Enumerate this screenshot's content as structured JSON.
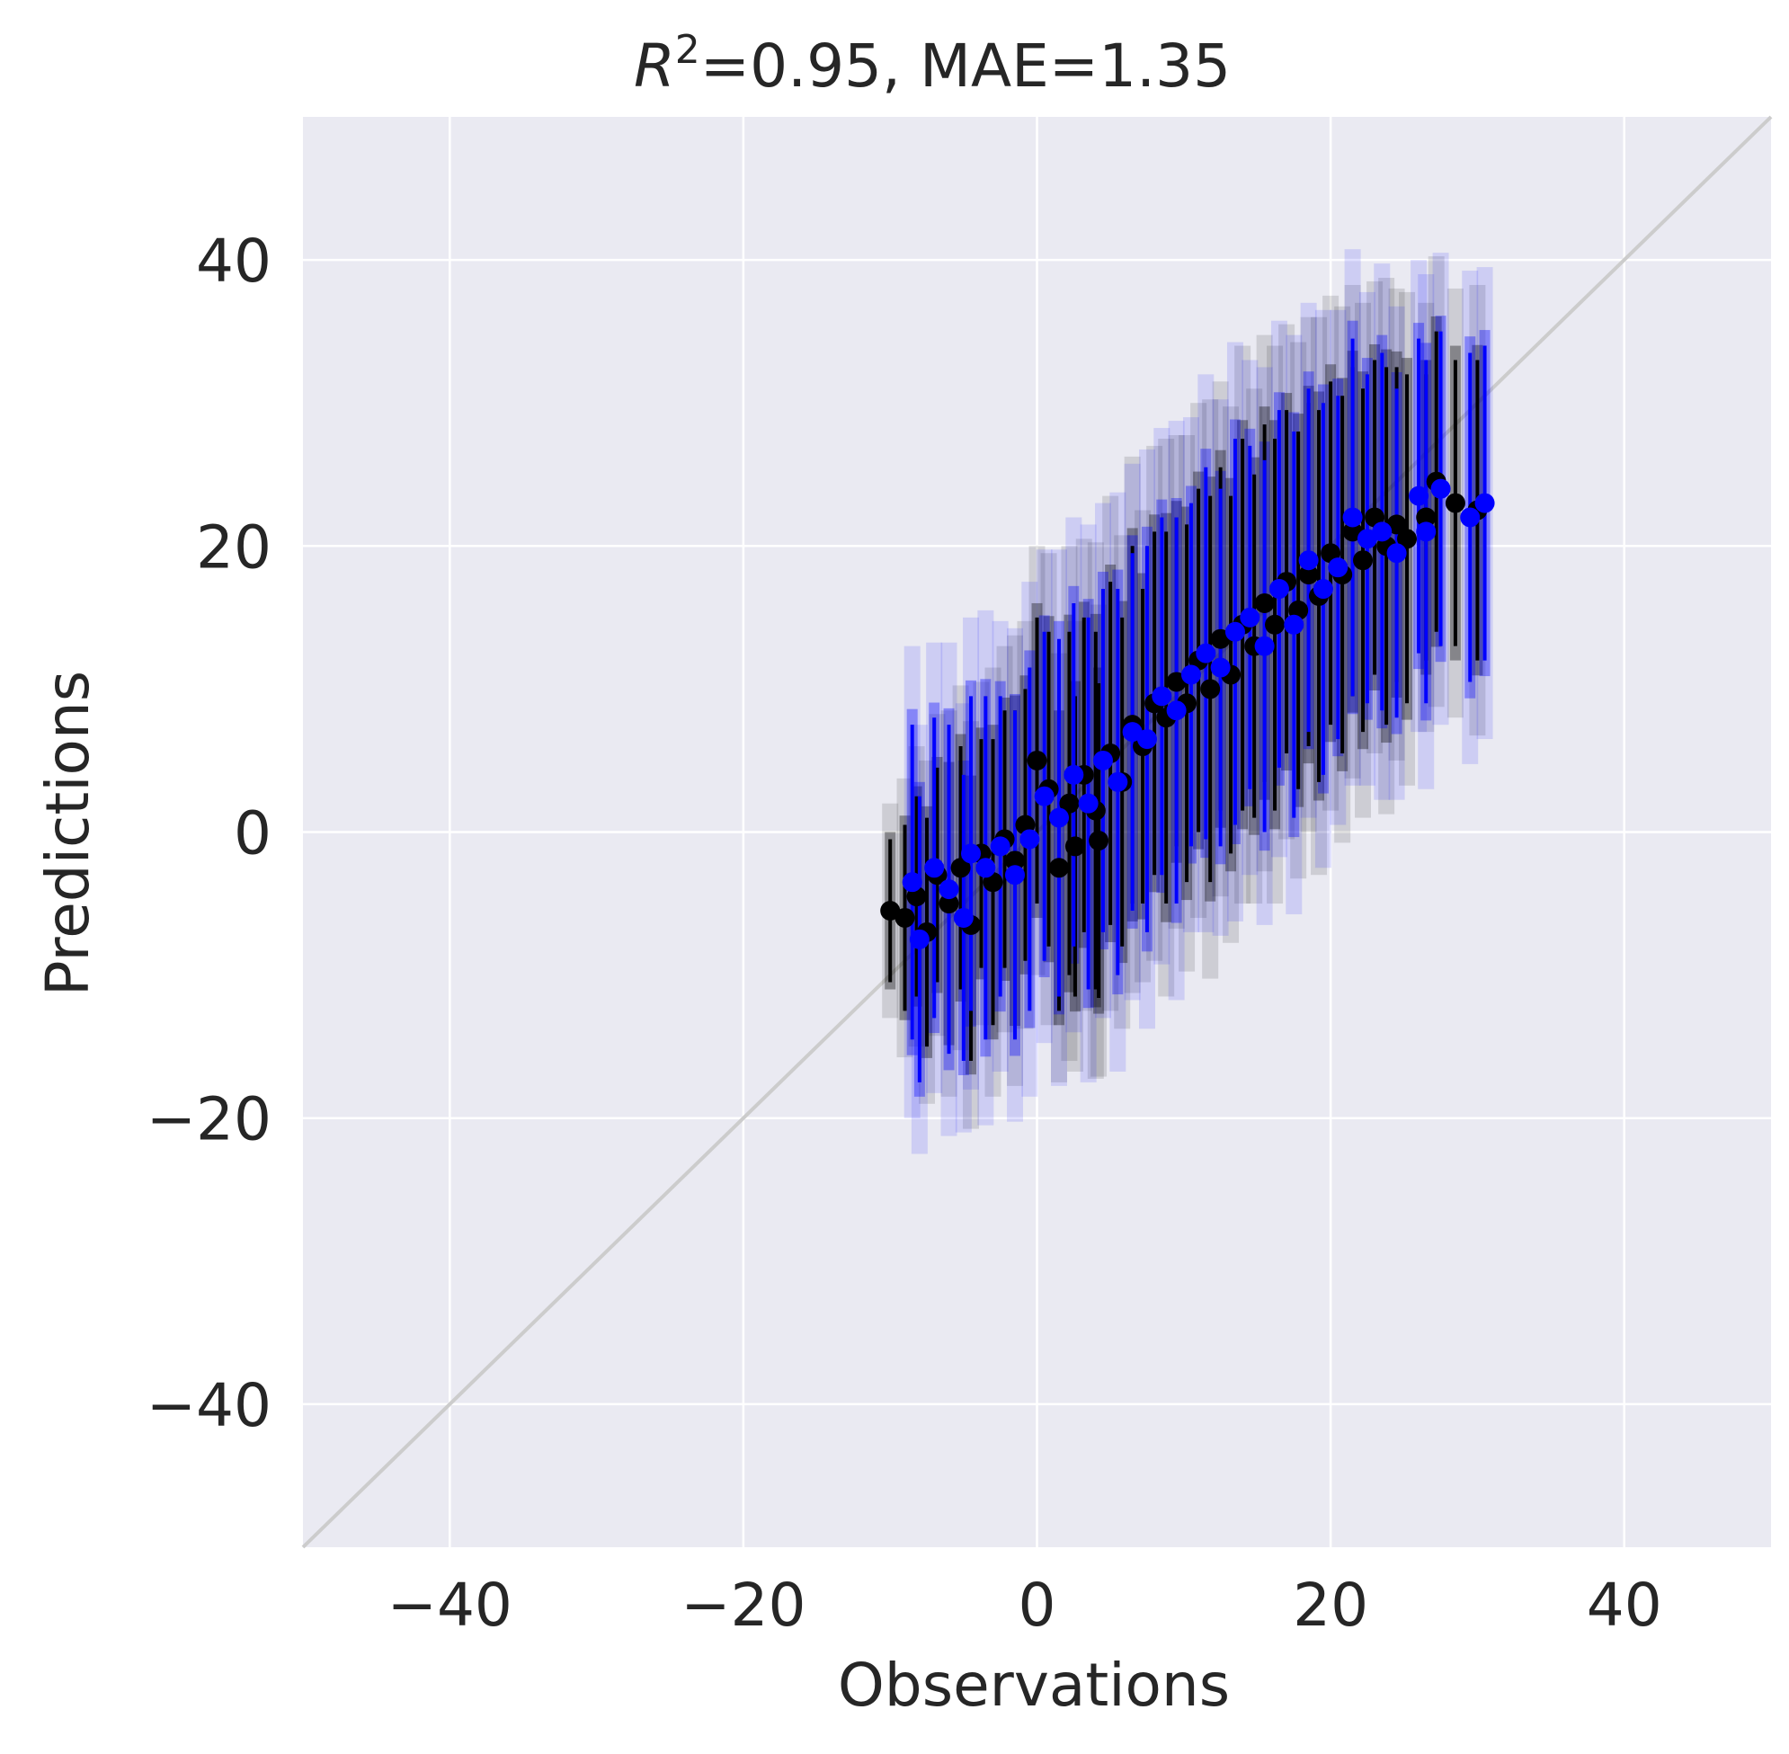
{
  "chart_data": {
    "type": "scatter",
    "title": {
      "r2_symbol": "R",
      "r2_superscript": "2",
      "rest": "=0.95, MAE=1.35"
    },
    "xlabel": "Observations",
    "ylabel": "Predictions",
    "xlim": [
      -50,
      50
    ],
    "ylim": [
      -50,
      50
    ],
    "x_ticks": [
      -40,
      -20,
      0,
      20,
      40
    ],
    "y_ticks": [
      -40,
      -20,
      0,
      20,
      40
    ],
    "x_tick_labels": [
      "−40",
      "−20",
      "0",
      "20",
      "40"
    ],
    "y_tick_labels": [
      "−40",
      "−20",
      "0",
      "20",
      "40"
    ],
    "grid": true,
    "identity_line": {
      "from": [
        -50,
        -50
      ],
      "to": [
        50,
        50
      ],
      "color": "#cccccc"
    },
    "colors": {
      "plot_background": "#eaeaf2",
      "grid": "#ffffff",
      "series_a": "#000000",
      "series_b": "#0000ff"
    },
    "series": [
      {
        "color": "#000000",
        "points": [
          [
            -10.0,
            -5.5,
            5.0
          ],
          [
            -9.0,
            -6.0,
            6.5
          ],
          [
            -8.2,
            -4.5,
            7.0
          ],
          [
            -7.5,
            -7.0,
            8.0
          ],
          [
            -6.8,
            -3.0,
            7.5
          ],
          [
            -6.0,
            -5.0,
            9.0
          ],
          [
            -5.2,
            -2.5,
            8.5
          ],
          [
            -4.5,
            -6.5,
            9.5
          ],
          [
            -3.8,
            -1.5,
            8.0
          ],
          [
            -3.0,
            -3.5,
            10.0
          ],
          [
            -2.2,
            -0.5,
            9.0
          ],
          [
            -1.5,
            -2.0,
            10.5
          ],
          [
            -0.8,
            0.5,
            9.5
          ],
          [
            0.0,
            5.0,
            10.0
          ],
          [
            0.8,
            3.0,
            11.0
          ],
          [
            1.5,
            -2.5,
            10.0
          ],
          [
            2.2,
            2.0,
            12.0
          ],
          [
            2.6,
            -1.0,
            10.5
          ],
          [
            3.2,
            4.0,
            11.0
          ],
          [
            4.0,
            1.5,
            12.5
          ],
          [
            4.2,
            -0.6,
            11.0
          ],
          [
            5.0,
            5.5,
            12.0
          ],
          [
            5.8,
            3.5,
            11.5
          ],
          [
            6.5,
            7.5,
            12.5
          ],
          [
            7.2,
            6.0,
            11.0
          ],
          [
            8.0,
            9.0,
            12.0
          ],
          [
            8.8,
            8.0,
            13.0
          ],
          [
            9.5,
            10.5,
            11.5
          ],
          [
            10.2,
            9.0,
            12.5
          ],
          [
            11.0,
            12.0,
            12.0
          ],
          [
            11.8,
            10.0,
            13.5
          ],
          [
            12.5,
            13.5,
            12.0
          ],
          [
            13.2,
            11.0,
            12.5
          ],
          [
            14.0,
            14.5,
            13.0
          ],
          [
            14.8,
            13.0,
            12.0
          ],
          [
            15.5,
            16.0,
            12.5
          ],
          [
            16.2,
            14.5,
            13.0
          ],
          [
            17.0,
            17.5,
            12.0
          ],
          [
            17.8,
            15.5,
            12.5
          ],
          [
            18.5,
            18.0,
            12.0
          ],
          [
            19.2,
            16.5,
            13.0
          ],
          [
            20.0,
            19.5,
            12.0
          ],
          [
            20.8,
            18.0,
            12.5
          ],
          [
            21.5,
            21.0,
            11.5
          ],
          [
            22.2,
            19.0,
            12.0
          ],
          [
            23.0,
            22.0,
            11.0
          ],
          [
            23.8,
            20.0,
            12.5
          ],
          [
            24.5,
            21.5,
            11.0
          ],
          [
            25.2,
            20.5,
            11.5
          ],
          [
            26.5,
            22.0,
            10.0
          ],
          [
            27.2,
            24.5,
            10.5
          ],
          [
            28.5,
            23.0,
            10.0
          ],
          [
            30.0,
            22.5,
            10.5
          ]
        ]
      },
      {
        "color": "#0000ff",
        "points": [
          [
            -8.5,
            -3.5,
            11.0
          ],
          [
            -8.0,
            -7.5,
            10.0
          ],
          [
            -7.0,
            -2.5,
            10.5
          ],
          [
            -6.0,
            -4.0,
            11.5
          ],
          [
            -5.0,
            -6.0,
            10.0
          ],
          [
            -4.5,
            -1.5,
            11.0
          ],
          [
            -3.5,
            -2.5,
            12.0
          ],
          [
            -2.5,
            -1.0,
            10.5
          ],
          [
            -1.5,
            -3.0,
            11.5
          ],
          [
            -0.5,
            -0.5,
            12.0
          ],
          [
            0.5,
            2.5,
            11.5
          ],
          [
            1.5,
            1.0,
            12.5
          ],
          [
            2.5,
            4.0,
            12.0
          ],
          [
            3.5,
            2.0,
            13.0
          ],
          [
            4.5,
            5.0,
            12.0
          ],
          [
            5.5,
            3.5,
            13.5
          ],
          [
            6.5,
            7.0,
            12.5
          ],
          [
            7.5,
            6.5,
            13.5
          ],
          [
            8.5,
            9.5,
            12.5
          ],
          [
            9.5,
            8.5,
            13.5
          ],
          [
            10.5,
            11.0,
            12.0
          ],
          [
            11.5,
            12.5,
            13.0
          ],
          [
            12.5,
            11.5,
            12.5
          ],
          [
            13.5,
            14.0,
            13.5
          ],
          [
            14.5,
            15.0,
            12.0
          ],
          [
            15.5,
            13.0,
            13.0
          ],
          [
            16.5,
            17.0,
            12.5
          ],
          [
            17.5,
            14.5,
            13.5
          ],
          [
            18.5,
            19.0,
            12.0
          ],
          [
            19.5,
            17.0,
            13.0
          ],
          [
            20.5,
            18.5,
            12.0
          ],
          [
            21.5,
            22.0,
            12.5
          ],
          [
            22.5,
            20.5,
            11.5
          ],
          [
            23.5,
            21.0,
            12.5
          ],
          [
            24.5,
            19.5,
            11.5
          ],
          [
            26.0,
            23.5,
            11.0
          ],
          [
            26.5,
            21.0,
            12.0
          ],
          [
            27.5,
            24.0,
            11.0
          ],
          [
            29.5,
            22.0,
            11.5
          ],
          [
            30.5,
            23.0,
            11.0
          ]
        ]
      }
    ]
  }
}
